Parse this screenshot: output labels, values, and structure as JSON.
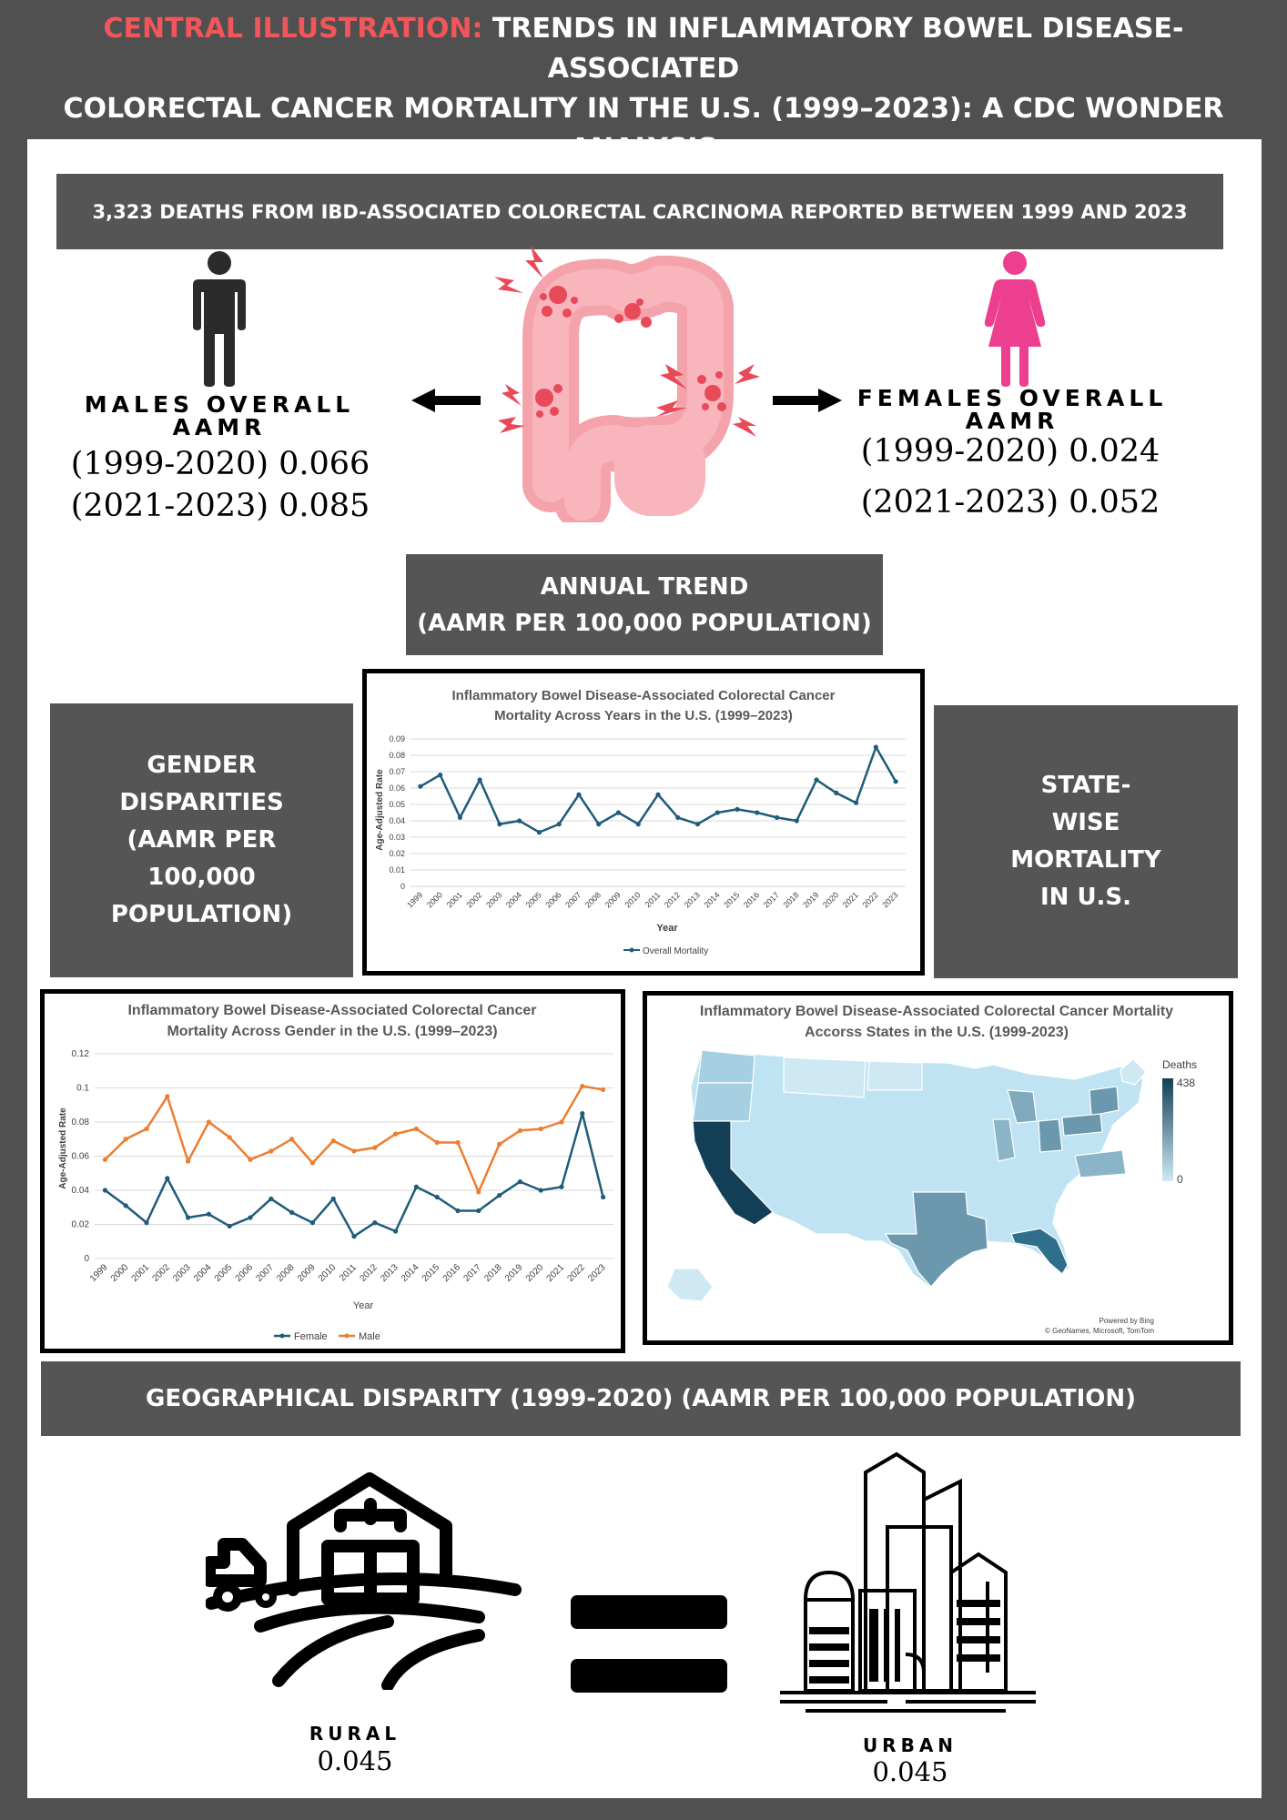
{
  "header": {
    "highlight": "CENTRAL ILLUSTRATION:",
    "line1": "TRENDS IN INFLAMMATORY BOWEL DISEASE-ASSOCIATED",
    "line2": "COLORECTAL CANCER MORTALITY IN THE U.S. (1999–2023): A CDC WONDER",
    "line3": "ANALYSIS"
  },
  "deaths_banner": "3,323 DEATHS FROM IBD-ASSOCIATED COLORECTAL CARCINOMA REPORTED BETWEEN 1999 AND 2023",
  "males": {
    "label_line1": "MALES OVERALL",
    "label_line2": "AAMR",
    "value1": "(1999-2020) 0.066",
    "value2": "(2021-2023) 0.085"
  },
  "females": {
    "label_line1": "FEMALES OVERALL",
    "label_line2": "AAMR",
    "value1": "(1999-2020) 0.024",
    "value2": "(2021-2023) 0.052"
  },
  "trend_band": {
    "line1": "ANNUAL TREND",
    "line2": "(AAMR PER 100,000 POPULATION)"
  },
  "gender_band": {
    "line1": "GENDER",
    "line2": "DISPARITIES",
    "line3": "(AAMR PER",
    "line4": "100,000",
    "line5": "POPULATION)"
  },
  "state_band": {
    "line1": "STATE-",
    "line2": "WISE",
    "line3": "MORTALITY",
    "line4": "IN U.S."
  },
  "geo_band": "GEOGRAPHICAL DISPARITY (1999-2020) (AAMR PER 100,000 POPULATION)",
  "rural": {
    "label": "RURAL",
    "value": "0.045"
  },
  "urban": {
    "label": "URBAN",
    "value": "0.045"
  },
  "colors": {
    "overall": "#1f5c7a",
    "female": "#1f5c7a",
    "male": "#ed7d31",
    "map_high": "#123f55",
    "map_low": "#cfe9f4"
  },
  "chart_data": [
    {
      "type": "line",
      "title_line1": "Inflammatory Bowel Disease-Associated Colorectal Cancer",
      "title_line2": "Mortality  Across Years in the U.S. (1999–2023)",
      "xlabel": "Year",
      "ylabel": "Age-Adjusted Rate",
      "ylim": [
        0,
        0.09
      ],
      "yticks": [
        "0",
        "0.01",
        "0.02",
        "0.03",
        "0.04",
        "0.05",
        "0.06",
        "0.07",
        "0.08",
        "0.09"
      ],
      "legend_position": "bottom",
      "grid": true,
      "categories": [
        "1999",
        "2000",
        "2001",
        "2002",
        "2003",
        "2004",
        "2005",
        "2006",
        "2007",
        "2008",
        "2009",
        "2010",
        "2011",
        "2012",
        "2013",
        "2014",
        "2015",
        "2016",
        "2017",
        "2018",
        "2019",
        "2020",
        "2021",
        "2022",
        "2023"
      ],
      "series": [
        {
          "name": "Overall Mortality",
          "values": [
            0.061,
            0.068,
            0.042,
            0.065,
            0.038,
            0.04,
            0.033,
            0.038,
            0.056,
            0.038,
            0.045,
            0.038,
            0.056,
            0.042,
            0.038,
            0.045,
            0.047,
            0.045,
            0.042,
            0.04,
            0.065,
            0.057,
            0.051,
            0.085,
            0.064
          ]
        }
      ]
    },
    {
      "type": "line",
      "title_line1": "Inflammatory Bowel Disease-Associated Colorectal Cancer",
      "title_line2": "Mortality  Across Gender in the U.S. (1999–2023)",
      "xlabel": "Year",
      "ylabel": "Age-Adjusted Rate",
      "ylim": [
        0,
        0.12
      ],
      "yticks": [
        "0",
        "0.02",
        "0.04",
        "0.06",
        "0.08",
        "0.1",
        "0.12"
      ],
      "legend_position": "bottom",
      "grid": true,
      "categories": [
        "1999",
        "2000",
        "2001",
        "2002",
        "2003",
        "2004",
        "2005",
        "2006",
        "2007",
        "2008",
        "2009",
        "2010",
        "2011",
        "2012",
        "2013",
        "2014",
        "2015",
        "2016",
        "2017",
        "2018",
        "2019",
        "2020",
        "2021",
        "2022",
        "2023"
      ],
      "series": [
        {
          "name": "Female",
          "values": [
            0.04,
            0.031,
            0.021,
            0.047,
            0.024,
            0.026,
            0.019,
            0.024,
            0.035,
            0.027,
            0.021,
            0.035,
            0.013,
            0.021,
            0.016,
            0.042,
            0.036,
            0.028,
            0.028,
            0.037,
            0.045,
            0.04,
            0.042,
            0.085,
            0.036
          ]
        },
        {
          "name": "Male",
          "values": [
            0.058,
            0.07,
            0.076,
            0.095,
            0.057,
            0.08,
            0.071,
            0.058,
            0.063,
            0.07,
            0.056,
            0.069,
            0.063,
            0.065,
            0.073,
            0.076,
            0.068,
            0.068,
            0.039,
            0.067,
            0.075,
            0.076,
            0.08,
            0.101,
            0.099
          ]
        }
      ]
    },
    {
      "type": "heatmap",
      "title_line1": "Inflammatory Bowel Disease-Associated Colorectal Cancer Mortality",
      "title_line2": "Accorss States in the U.S. (1999-2023)",
      "legend_title": "Deaths",
      "legend_max": "438",
      "legend_min": "0",
      "credit_line1": "Powered by Bing",
      "credit_line2": "© GeoNames, Microsoft, TomTom"
    }
  ]
}
